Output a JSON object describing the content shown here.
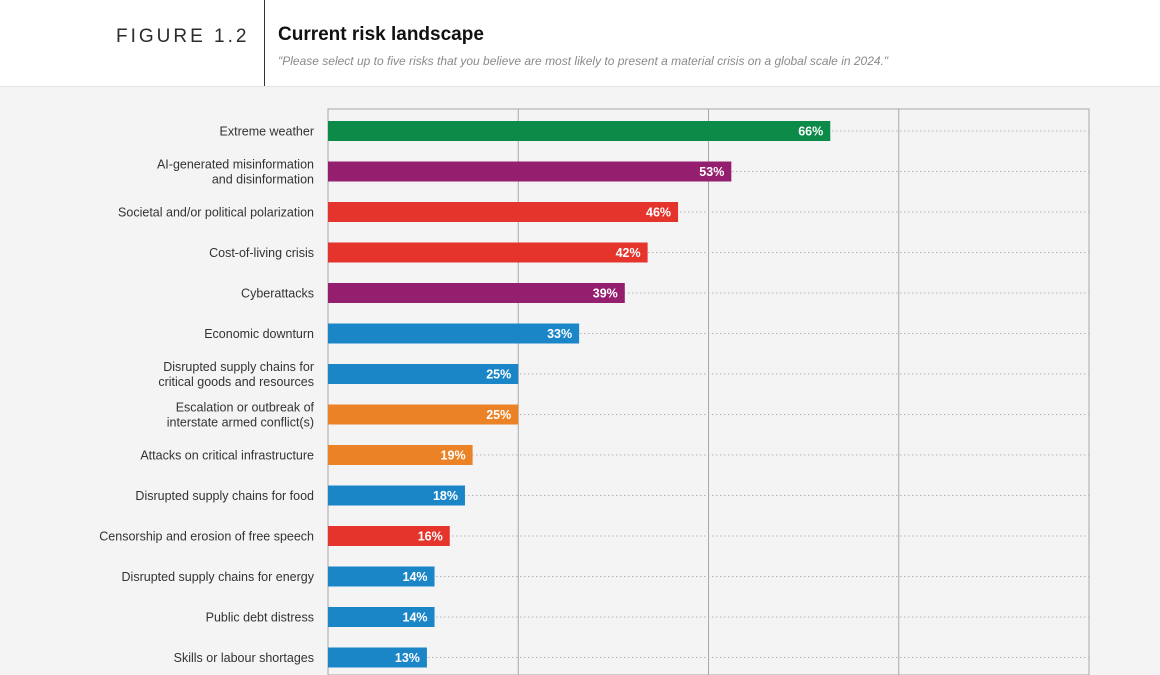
{
  "header": {
    "figure_label": "FIGURE 1.2",
    "title": "Current risk landscape",
    "subtitle": "\"Please select up to five risks that you believe are most likely to present a material crisis on a global scale in 2024.\""
  },
  "colors": {
    "environmental": "#0b8a48",
    "technological": "#951f6f",
    "societal": "#e5342c",
    "economic": "#1a86c8",
    "geopolitical": "#ec8226"
  },
  "chart_data": {
    "type": "bar",
    "orientation": "horizontal",
    "title": "Current risk landscape",
    "xlim": [
      0,
      100
    ],
    "grid": true,
    "categories": [
      [
        "Extreme weather"
      ],
      [
        "AI-generated misinformation",
        "and disinformation"
      ],
      [
        "Societal and/or political polarization"
      ],
      [
        "Cost-of-living crisis"
      ],
      [
        "Cyberattacks"
      ],
      [
        "Economic downturn"
      ],
      [
        "Disrupted supply chains for",
        "critical goods and resources"
      ],
      [
        "Escalation or outbreak of",
        "interstate armed conflict(s)"
      ],
      [
        "Attacks on critical infrastructure"
      ],
      [
        "Disrupted supply chains for food"
      ],
      [
        "Censorship and erosion of free speech"
      ],
      [
        "Disrupted supply chains for energy"
      ],
      [
        "Public debt distress"
      ],
      [
        "Skills or labour shortages"
      ]
    ],
    "values": [
      66,
      53,
      46,
      42,
      39,
      33,
      25,
      25,
      19,
      18,
      16,
      14,
      14,
      13
    ],
    "value_labels": [
      "66%",
      "53%",
      "46%",
      "42%",
      "39%",
      "33%",
      "25%",
      "25%",
      "19%",
      "18%",
      "16%",
      "14%",
      "14%",
      "13%"
    ],
    "color_groups": [
      "environmental",
      "technological",
      "societal",
      "societal",
      "technological",
      "economic",
      "economic",
      "geopolitical",
      "geopolitical",
      "economic",
      "societal",
      "economic",
      "economic",
      "economic"
    ]
  }
}
